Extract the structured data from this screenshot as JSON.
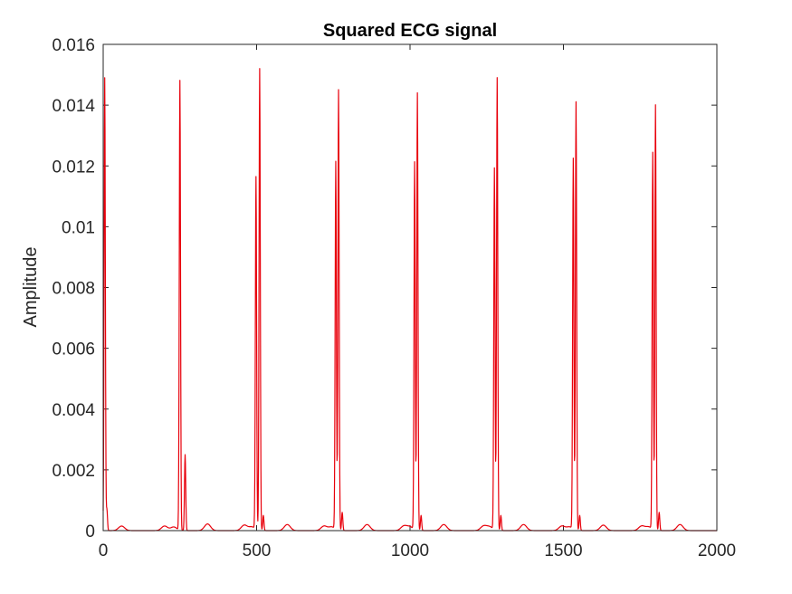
{
  "chart_data": {
    "type": "line",
    "title": "Squared ECG signal",
    "xlabel": "",
    "ylabel": "Amplitude",
    "xlim": [
      0,
      2000
    ],
    "ylim": [
      0,
      0.016
    ],
    "x_ticks": [
      0,
      500,
      1000,
      1500,
      2000
    ],
    "y_ticks": [
      0,
      0.002,
      0.004,
      0.006,
      0.008,
      0.01,
      0.012,
      0.014,
      0.016
    ],
    "x_tick_labels": [
      "0",
      "500",
      "1000",
      "1500",
      "2000"
    ],
    "y_tick_labels": [
      "0",
      "0.002",
      "0.004",
      "0.006",
      "0.008",
      "0.01",
      "0.012",
      "0.014",
      "0.016"
    ],
    "grid": false,
    "legend": "none",
    "series": [
      {
        "color": "#e8000b",
        "peaks": [
          {
            "x": 5,
            "y": 0.0149
          },
          {
            "x": 12,
            "y": 0.0007
          },
          {
            "x": 250,
            "y": 0.0148
          },
          {
            "x": 267,
            "y": 0.0025
          },
          {
            "x": 498,
            "y": 0.0116
          },
          {
            "x": 510,
            "y": 0.0152
          },
          {
            "x": 522,
            "y": 0.0005
          },
          {
            "x": 758,
            "y": 0.0121
          },
          {
            "x": 767,
            "y": 0.0145
          },
          {
            "x": 779,
            "y": 0.0006
          },
          {
            "x": 1015,
            "y": 0.0121
          },
          {
            "x": 1024,
            "y": 0.0144
          },
          {
            "x": 1036,
            "y": 0.0005
          },
          {
            "x": 1275,
            "y": 0.0119
          },
          {
            "x": 1284,
            "y": 0.0149
          },
          {
            "x": 1296,
            "y": 0.0005
          },
          {
            "x": 1532,
            "y": 0.0122
          },
          {
            "x": 1541,
            "y": 0.0141
          },
          {
            "x": 1553,
            "y": 0.0005
          },
          {
            "x": 1791,
            "y": 0.0124
          },
          {
            "x": 1800,
            "y": 0.014
          },
          {
            "x": 1812,
            "y": 0.0006
          }
        ],
        "small_waves": [
          {
            "x": 60,
            "y": 0.00015
          },
          {
            "x": 200,
            "y": 0.00015
          },
          {
            "x": 230,
            "y": 0.00012
          },
          {
            "x": 340,
            "y": 0.00022
          },
          {
            "x": 460,
            "y": 0.00018
          },
          {
            "x": 485,
            "y": 0.00012
          },
          {
            "x": 600,
            "y": 0.0002
          },
          {
            "x": 720,
            "y": 0.00015
          },
          {
            "x": 745,
            "y": 0.00012
          },
          {
            "x": 860,
            "y": 0.0002
          },
          {
            "x": 980,
            "y": 0.00015
          },
          {
            "x": 1000,
            "y": 0.00012
          },
          {
            "x": 1110,
            "y": 0.0002
          },
          {
            "x": 1240,
            "y": 0.00015
          },
          {
            "x": 1260,
            "y": 0.00012
          },
          {
            "x": 1370,
            "y": 0.0002
          },
          {
            "x": 1495,
            "y": 0.00015
          },
          {
            "x": 1520,
            "y": 0.00012
          },
          {
            "x": 1630,
            "y": 0.00018
          },
          {
            "x": 1755,
            "y": 0.00015
          },
          {
            "x": 1778,
            "y": 0.00012
          },
          {
            "x": 1880,
            "y": 0.0002
          }
        ]
      }
    ]
  }
}
